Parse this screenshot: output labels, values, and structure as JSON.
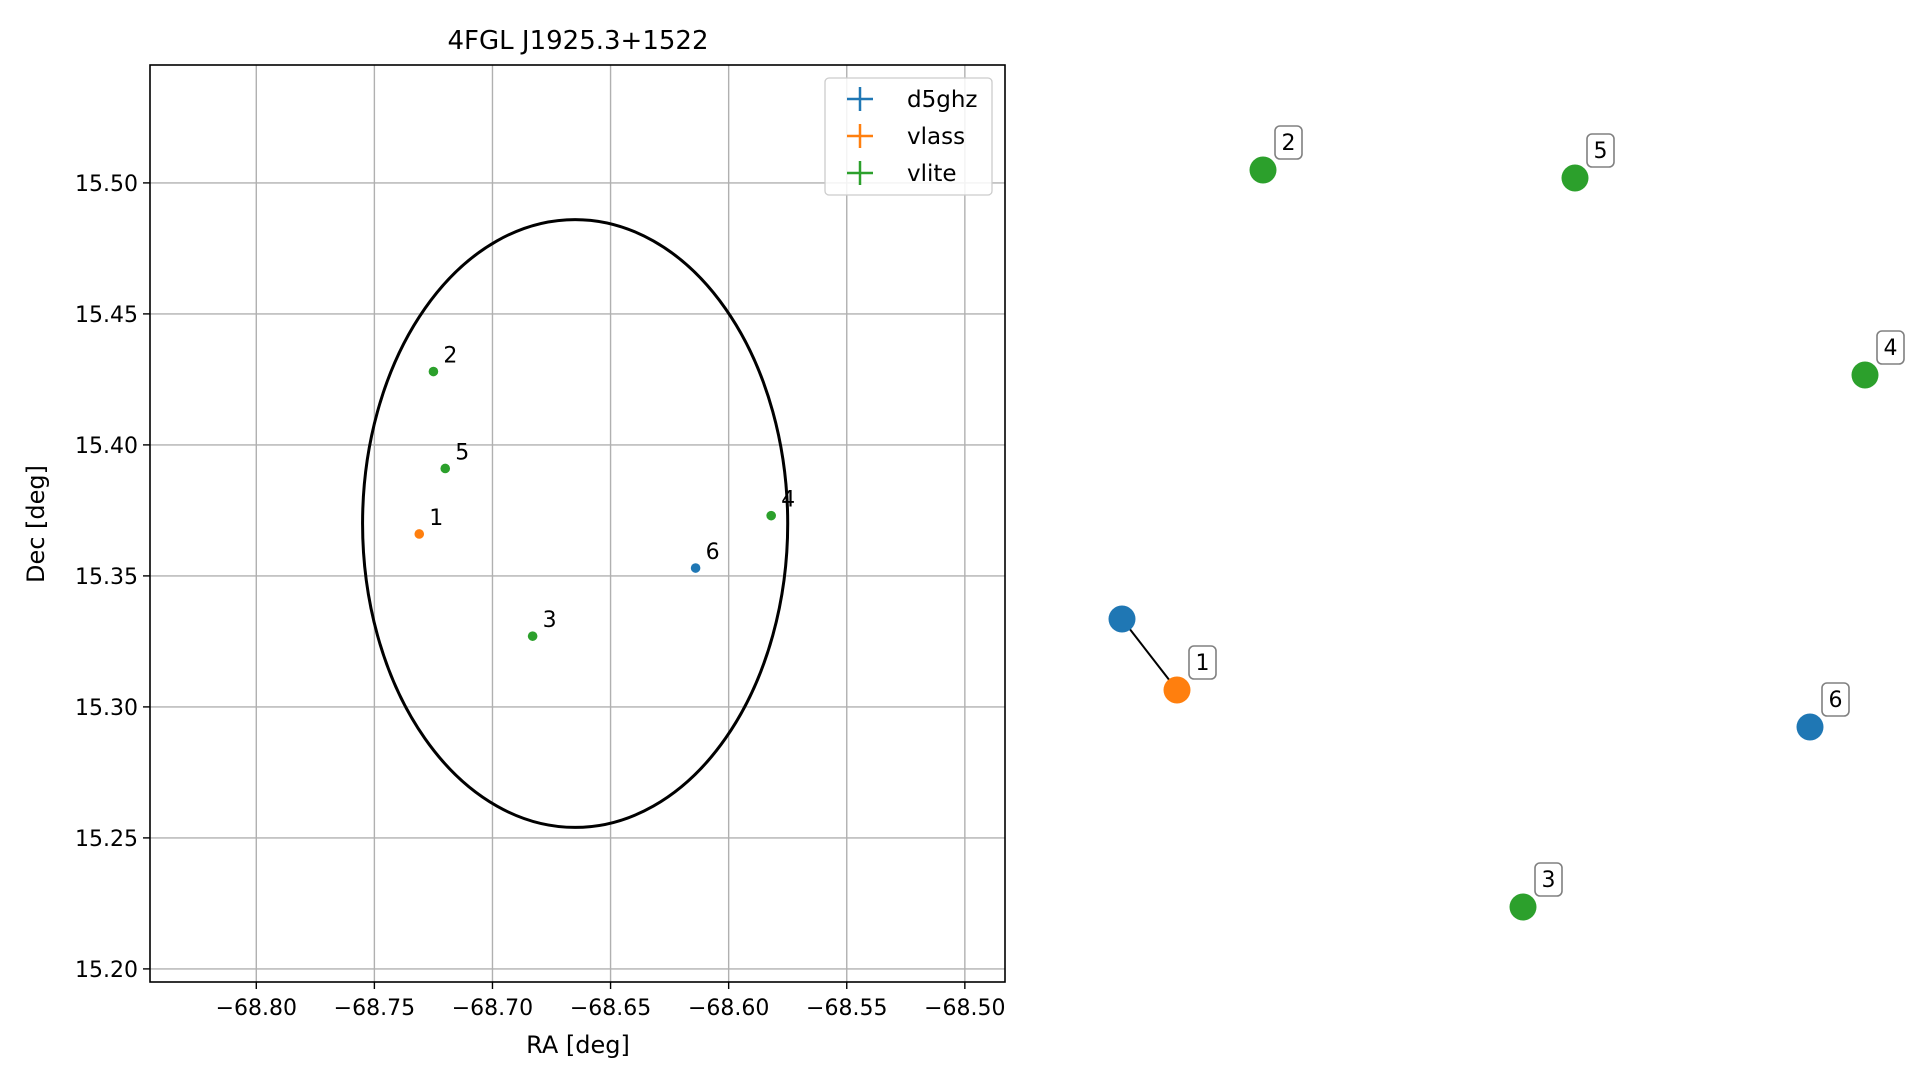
{
  "chart_data": [
    {
      "type": "scatter",
      "title": "4FGL J1925.3+1522",
      "xlabel": "RA [deg]",
      "ylabel": "Dec [deg]",
      "xlim": [
        -68.845,
        -68.483
      ],
      "ylim": [
        15.195,
        15.545
      ],
      "x_ticks": [
        -68.8,
        -68.75,
        -68.7,
        -68.65,
        -68.6,
        -68.55,
        -68.5
      ],
      "x_tick_labels": [
        "−68.80",
        "−68.75",
        "−68.70",
        "−68.65",
        "−68.60",
        "−68.55",
        "−68.50"
      ],
      "y_ticks": [
        15.2,
        15.25,
        15.3,
        15.35,
        15.4,
        15.45,
        15.5
      ],
      "y_tick_labels": [
        "15.20",
        "15.25",
        "15.30",
        "15.35",
        "15.40",
        "15.45",
        "15.50"
      ],
      "grid": true,
      "legend_position": "top-right",
      "ellipse": {
        "center": [
          -68.665,
          15.37
        ],
        "semi_axis_ra": 0.09,
        "semi_axis_dec": 0.116,
        "color": "#000000"
      },
      "series": [
        {
          "name": "d5ghz",
          "color": "#1f77b4",
          "points": [
            {
              "label": "6",
              "x": -68.614,
              "y": 15.353
            }
          ]
        },
        {
          "name": "vlass",
          "color": "#ff7f0e",
          "points": [
            {
              "label": "1",
              "x": -68.731,
              "y": 15.366
            }
          ]
        },
        {
          "name": "vlite",
          "color": "#2ca02c",
          "points": [
            {
              "label": "2",
              "x": -68.725,
              "y": 15.428
            },
            {
              "label": "5",
              "x": -68.72,
              "y": 15.391
            },
            {
              "label": "3",
              "x": -68.683,
              "y": 15.327
            },
            {
              "label": "4",
              "x": -68.582,
              "y": 15.373
            }
          ]
        }
      ]
    },
    {
      "type": "graph",
      "nodes": [
        {
          "id": "d5ghz-1",
          "label": "",
          "color": "#1f77b4"
        },
        {
          "id": "vlass-1",
          "label": "1",
          "color": "#ff7f0e"
        },
        {
          "id": "vlite-2",
          "label": "2",
          "color": "#2ca02c"
        },
        {
          "id": "vlite-5",
          "label": "5",
          "color": "#2ca02c"
        },
        {
          "id": "vlite-4",
          "label": "4",
          "color": "#2ca02c"
        },
        {
          "id": "d5ghz-6",
          "label": "6",
          "color": "#1f77b4"
        },
        {
          "id": "vlite-3",
          "label": "3",
          "color": "#2ca02c"
        }
      ],
      "edges": [
        {
          "from": "d5ghz-1",
          "to": "vlass-1"
        }
      ]
    }
  ]
}
